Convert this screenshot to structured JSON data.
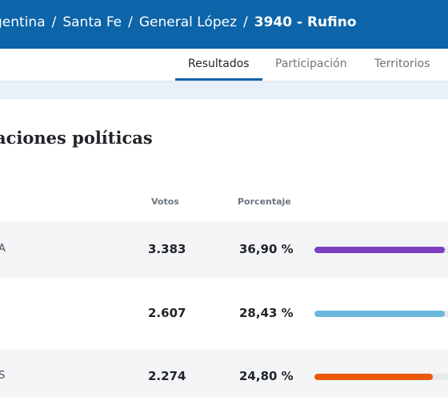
{
  "breadcrumb": {
    "items": [
      "gentina",
      "Santa Fe",
      "General López"
    ],
    "current": "3940 - Rufino",
    "separator": "/"
  },
  "tabs": [
    "Resultados",
    "Participación",
    "Territorios"
  ],
  "active_tab": "Resultados",
  "section_title": "aciones políticas",
  "columns": {
    "votes": "Votos",
    "percent": "Porcentaje"
  },
  "rows": [
    {
      "name": "A",
      "votes": "3.383",
      "percent": "36,90 %",
      "fraction": 0.96,
      "color": "#7b3fbf"
    },
    {
      "name": "",
      "votes": "2.607",
      "percent": "28,43 %",
      "fraction": 0.96,
      "color": "#6bb8dd"
    },
    {
      "name": "S",
      "votes": "2.274",
      "percent": "24,80 %",
      "fraction": 0.87,
      "color": "#e8590c"
    }
  ]
}
